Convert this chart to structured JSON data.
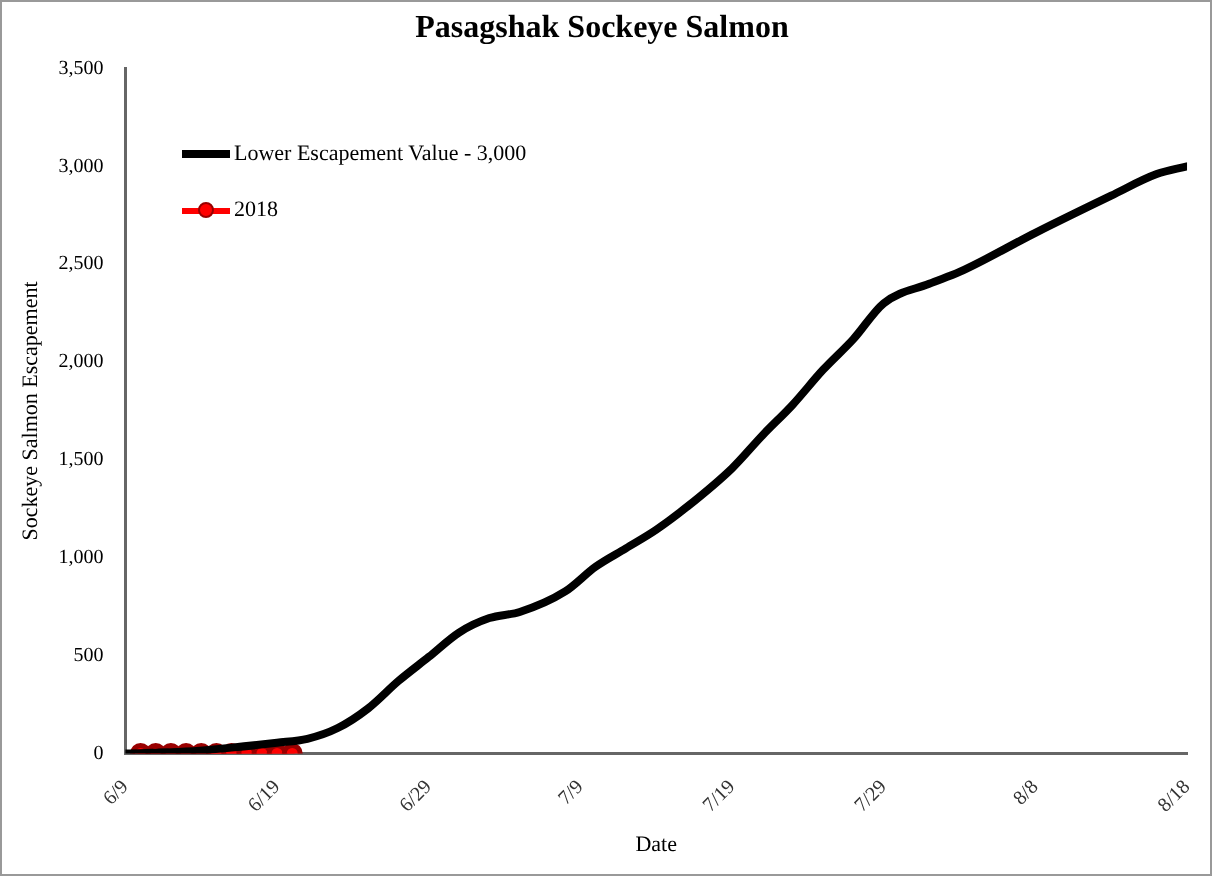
{
  "chart_data": {
    "type": "line",
    "title": "Pasagshak Sockeye Salmon",
    "xlabel": "Date",
    "ylabel": "Sockeye Salmon Escapement",
    "xlim": [
      "--06-09",
      "--08-18"
    ],
    "xticks": [
      {
        "value": "--06-09",
        "label": "6/9"
      },
      {
        "value": "--06-19",
        "label": "6/19"
      },
      {
        "value": "--06-29",
        "label": "6/29"
      },
      {
        "value": "--07-09",
        "label": "7/9"
      },
      {
        "value": "--07-19",
        "label": "7/19"
      },
      {
        "value": "--07-29",
        "label": "7/29"
      },
      {
        "value": "--08-08",
        "label": "8/8"
      },
      {
        "value": "--08-18",
        "label": "8/18"
      }
    ],
    "ylim": [
      0,
      3500
    ],
    "yticks": [
      {
        "value": 0,
        "label": "0"
      },
      {
        "value": 500,
        "label": "500"
      },
      {
        "value": 1000,
        "label": "1,000"
      },
      {
        "value": 1500,
        "label": "1,500"
      },
      {
        "value": 2000,
        "label": "2,000"
      },
      {
        "value": 2500,
        "label": "2,500"
      },
      {
        "value": 3000,
        "label": "3,000"
      },
      {
        "value": 3500,
        "label": "3,500"
      }
    ],
    "grid": false,
    "legend": "top left",
    "series": [
      {
        "name": "Lower Escapement Value - 3,000",
        "color": "#000000",
        "marker": "none",
        "x": [
          "--06-09",
          "--06-13",
          "--06-16",
          "--06-19",
          "--06-21",
          "--06-23",
          "--06-25",
          "--06-27",
          "--06-29",
          "--07-01",
          "--07-03",
          "--07-05",
          "--07-08",
          "--07-10",
          "--07-12",
          "--07-14",
          "--07-16",
          "--07-19",
          "--07-21",
          "--07-23",
          "--07-25",
          "--07-27",
          "--07-29",
          "--08-01",
          "--08-03",
          "--08-08",
          "--08-13",
          "--08-16",
          "--08-18"
        ],
        "values": [
          0,
          10,
          30,
          55,
          75,
          130,
          230,
          370,
          493,
          618,
          692,
          723,
          828,
          954,
          1048,
          1143,
          1258,
          1457,
          1625,
          1782,
          1960,
          2117,
          2300,
          2400,
          2460,
          2660,
          2850,
          2960,
          3000
        ]
      },
      {
        "name": "2018",
        "color": "#ff0000",
        "marker": "circle",
        "x": [
          "--06-10",
          "--06-11",
          "--06-12",
          "--06-13",
          "--06-14",
          "--06-15",
          "--06-16",
          "--06-17",
          "--06-18",
          "--06-19",
          "--06-20"
        ],
        "values": [
          0,
          0,
          0,
          0,
          0,
          0,
          0,
          0,
          0,
          0,
          0
        ]
      }
    ]
  }
}
